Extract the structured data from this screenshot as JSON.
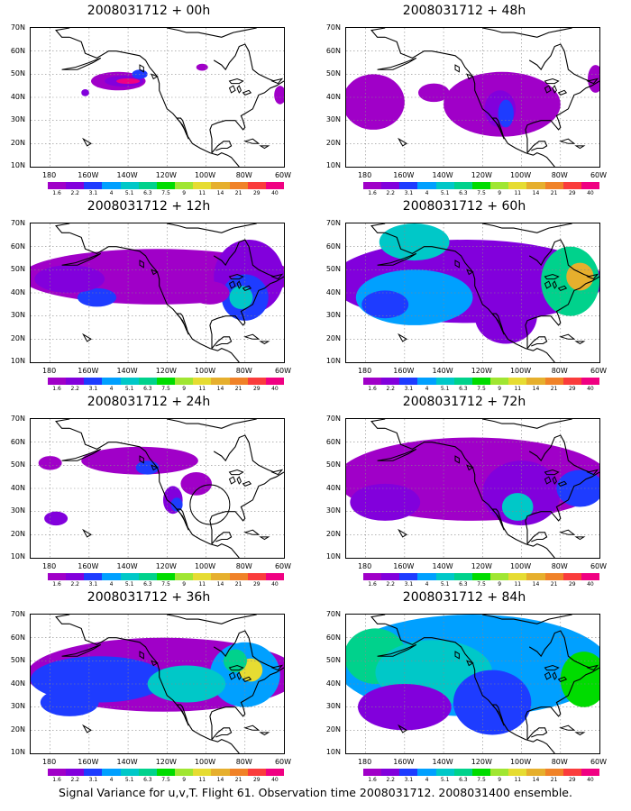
{
  "panels": [
    {
      "title": "2008031712 + 00h",
      "level": 0
    },
    {
      "title": "2008031712 + 48h",
      "level": 4
    },
    {
      "title": "2008031712 + 12h",
      "level": 1
    },
    {
      "title": "2008031712 + 60h",
      "level": 5
    },
    {
      "title": "2008031712 + 24h",
      "level": 2
    },
    {
      "title": "2008031712 + 72h",
      "level": 6
    },
    {
      "title": "2008031712 + 36h",
      "level": 3
    },
    {
      "title": "2008031712 + 84h",
      "level": 7
    }
  ],
  "lat_labels": [
    "70N",
    "60N",
    "50N",
    "40N",
    "30N",
    "20N",
    "10N"
  ],
  "lon_labels": [
    "180",
    "160W",
    "140W",
    "120W",
    "100W",
    "80W",
    "60W"
  ],
  "colorbar": {
    "colors": [
      "#a000c8",
      "#8200dc",
      "#1e3cff",
      "#00a0ff",
      "#00c8c8",
      "#00d28c",
      "#00dc00",
      "#a0e632",
      "#e6dc32",
      "#e6af2d",
      "#f08228",
      "#fa3c3c",
      "#f00082"
    ],
    "labels": [
      "1.6",
      "2.2",
      "3.1",
      "4",
      "5.1",
      "6.3",
      "7.5",
      "9",
      "11",
      "14",
      "21",
      "29",
      "40"
    ]
  },
  "caption": "Signal Variance for u,v,T. Flight 61. Observation time 2008031712. 2008031400 ensemble."
}
